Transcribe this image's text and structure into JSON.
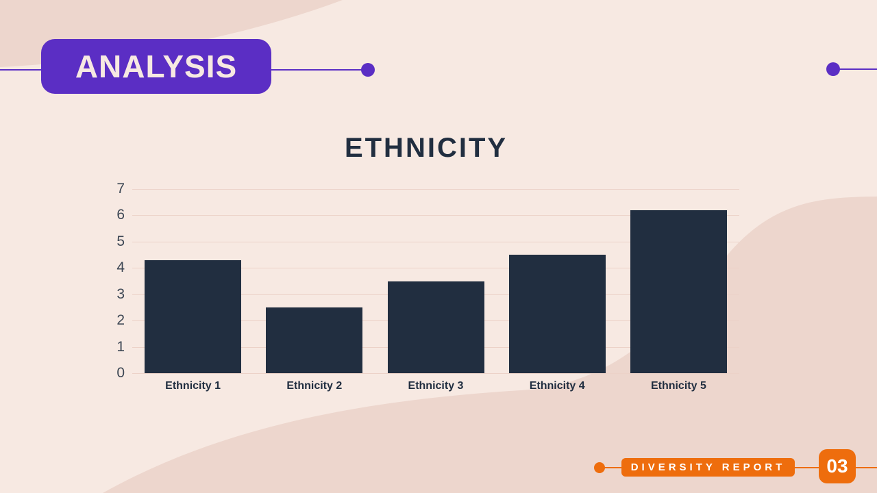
{
  "slide": {
    "header": {
      "title": "ANALYSIS"
    },
    "footer": {
      "report_label": "DIVERSITY REPORT",
      "page_number": "03"
    },
    "colors": {
      "purple": "#5b2ec4",
      "orange": "#ee6d0d",
      "navy": "#212e40",
      "background": "#f7e9e2",
      "shape_pink": "#edd6cd",
      "gridline": "#ecd2c8",
      "cream_text": "#f7e9e2"
    }
  },
  "chart_data": {
    "type": "bar",
    "title": "ETHNICITY",
    "categories": [
      "Ethnicity 1",
      "Ethnicity 2",
      "Ethnicity 3",
      "Ethnicity 4",
      "Ethnicity 5"
    ],
    "values": [
      4.3,
      2.5,
      3.5,
      4.5,
      6.2
    ],
    "xlabel": "",
    "ylabel": "",
    "ylim": [
      0,
      7
    ],
    "yticks": [
      0,
      1,
      2,
      3,
      4,
      5,
      6,
      7
    ],
    "grid": "horizontal",
    "legend": "none",
    "bar_color": "#212e40"
  }
}
